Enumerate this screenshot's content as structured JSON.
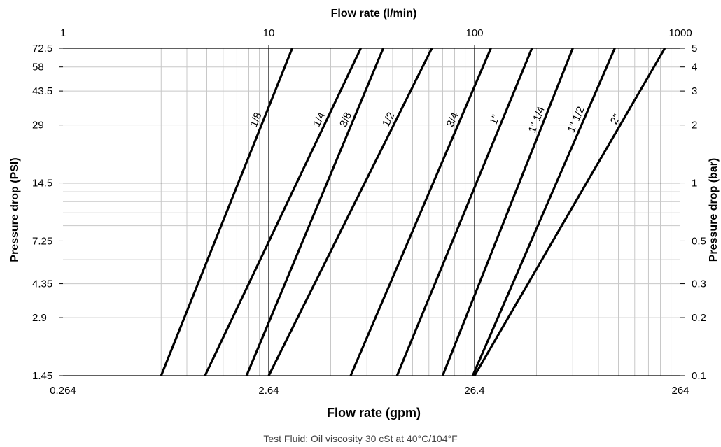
{
  "chart_data": {
    "type": "line",
    "x_scale": "log",
    "y_scale": "log",
    "top_axis": {
      "title": "Flow rate (l/min)",
      "ticks": [
        "1",
        "10",
        "100",
        "1000"
      ],
      "range": [
        1,
        1000
      ]
    },
    "bottom_axis": {
      "title": "Flow rate (gpm)",
      "ticks": [
        "0.264",
        "2.64",
        "26.4",
        "264"
      ],
      "range": [
        0.264,
        264
      ]
    },
    "left_axis": {
      "title": "Pressure drop (PSI)",
      "ticks": [
        "72.5",
        "58",
        "43.5",
        "29",
        "14.5",
        "7.25",
        "4.35",
        "2.9",
        "1.45"
      ],
      "range": [
        1.45,
        72.5
      ]
    },
    "right_axis": {
      "title": "Pressure drop (bar)",
      "ticks": [
        "5",
        "4",
        "3",
        "2",
        "1",
        "0.5",
        "0.3",
        "0.2",
        "0.1"
      ],
      "range": [
        0.1,
        5
      ]
    },
    "x_unit": "l/min",
    "y_unit": "bar",
    "grid": true,
    "series": [
      {
        "name": "1/8",
        "x": [
          3.0,
          13.0
        ],
        "y": [
          0.1,
          5
        ]
      },
      {
        "name": "1/4",
        "x": [
          4.9,
          28.0
        ],
        "y": [
          0.1,
          5
        ]
      },
      {
        "name": "3/8",
        "x": [
          7.8,
          36.0
        ],
        "y": [
          0.1,
          5
        ]
      },
      {
        "name": "1/2",
        "x": [
          10.0,
          62.0
        ],
        "y": [
          0.1,
          5
        ]
      },
      {
        "name": "3/4",
        "x": [
          25.0,
          120.0
        ],
        "y": [
          0.1,
          5
        ]
      },
      {
        "name": "1\"",
        "x": [
          42.0,
          190.0
        ],
        "y": [
          0.1,
          5
        ]
      },
      {
        "name": "1\" 1/4",
        "x": [
          70.0,
          300.0
        ],
        "y": [
          0.1,
          5
        ]
      },
      {
        "name": "1\" 1/2",
        "x": [
          98.0,
          480.0
        ],
        "y": [
          0.1,
          5
        ]
      },
      {
        "name": "2\"",
        "x": [
          100.0,
          840.0
        ],
        "y": [
          0.1,
          5
        ]
      }
    ],
    "footnote": "Test Fluid: Oil viscosity 30 cSt at 40°C/104°F"
  }
}
